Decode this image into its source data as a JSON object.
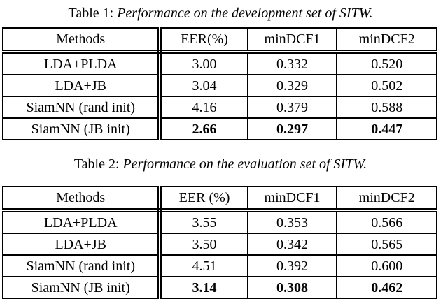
{
  "page": {
    "background_color": "#ffffff",
    "text_color": "#000000"
  },
  "captions": [
    {
      "label": "Table 1:",
      "text": "Performance on the development set of SITW."
    },
    {
      "label": "Table 2:",
      "text": "Performance on the evaluation set of SITW."
    }
  ],
  "tables": [
    {
      "headers": [
        "Methods",
        "EER(%)",
        "minDCF1",
        "minDCF2"
      ],
      "rows": [
        {
          "method": "LDA+PLDA",
          "eer": "3.00",
          "mindcf1": "0.332",
          "mindcf2": "0.520",
          "bold_values": false
        },
        {
          "method": "LDA+JB",
          "eer": "3.04",
          "mindcf1": "0.329",
          "mindcf2": "0.502",
          "bold_values": false
        },
        {
          "method": "SiamNN (rand init)",
          "eer": "4.16",
          "mindcf1": "0.379",
          "mindcf2": "0.588",
          "bold_values": false
        },
        {
          "method": "SiamNN (JB init)",
          "eer": "2.66",
          "mindcf1": "0.297",
          "mindcf2": "0.447",
          "bold_values": true
        }
      ]
    },
    {
      "headers": [
        "Methods",
        "EER (%)",
        "minDCF1",
        "minDCF2"
      ],
      "rows": [
        {
          "method": "LDA+PLDA",
          "eer": "3.55",
          "mindcf1": "0.353",
          "mindcf2": "0.566",
          "bold_values": false
        },
        {
          "method": "LDA+JB",
          "eer": "3.50",
          "mindcf1": "0.342",
          "mindcf2": "0.565",
          "bold_values": false
        },
        {
          "method": "SiamNN (rand init)",
          "eer": "4.51",
          "mindcf1": "0.392",
          "mindcf2": "0.600",
          "bold_values": false
        },
        {
          "method": "SiamNN (JB init)",
          "eer": "3.14",
          "mindcf1": "0.308",
          "mindcf2": "0.462",
          "bold_values": true
        }
      ]
    }
  ]
}
